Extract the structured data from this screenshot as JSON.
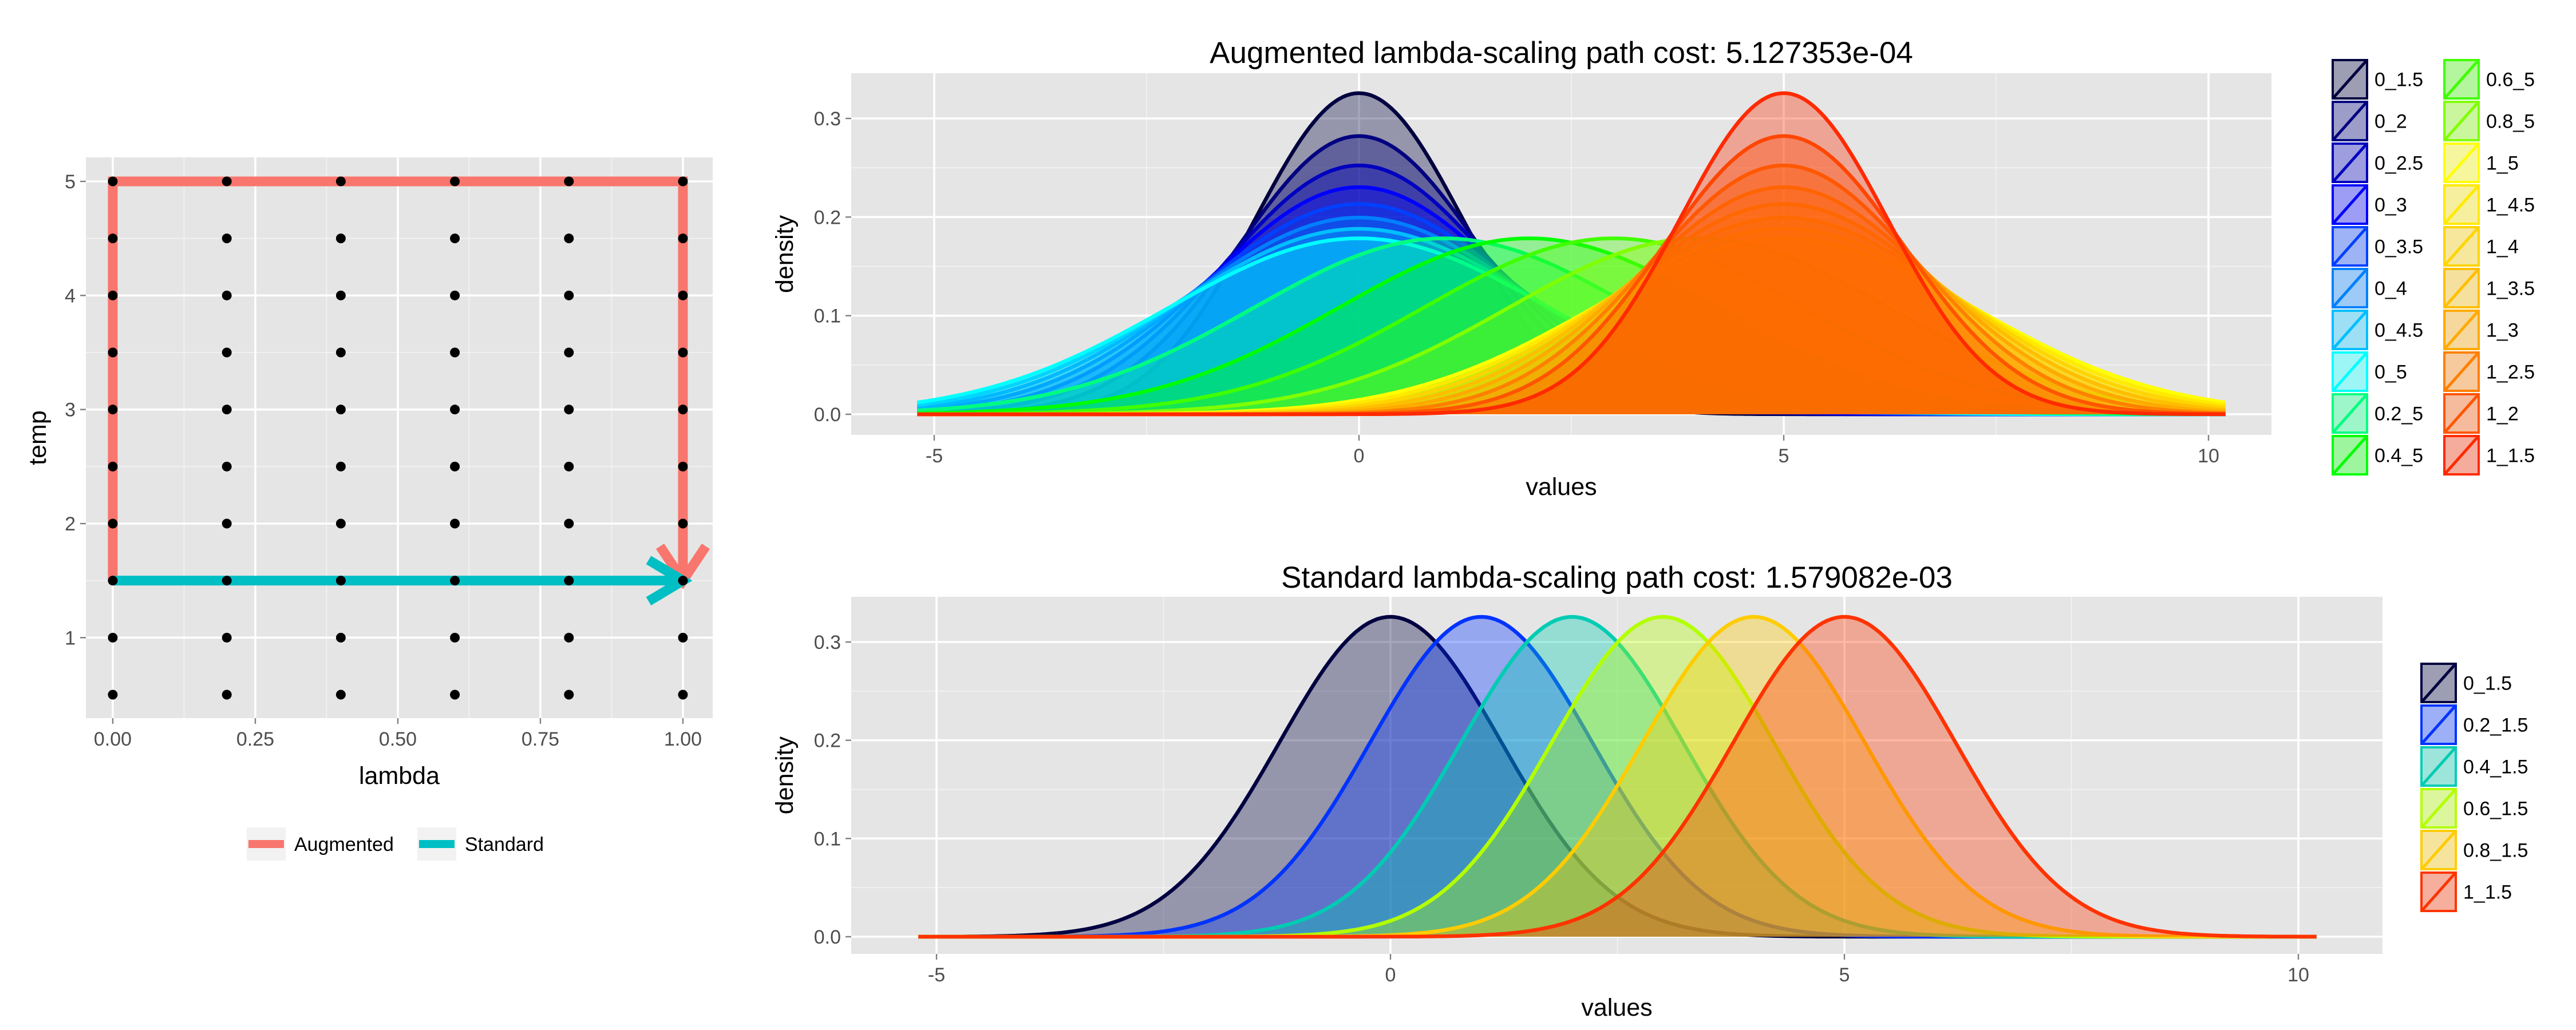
{
  "chart_data": [
    {
      "id": "path",
      "type": "line",
      "xlabel": "lambda",
      "ylabel": "temp",
      "xlim": [
        0,
        1
      ],
      "ylim": [
        0.5,
        5
      ],
      "x_ticks": [
        "0.00",
        "0.25",
        "0.50",
        "0.75",
        "1.00"
      ],
      "y_ticks": [
        "1",
        "2",
        "3",
        "4",
        "5"
      ],
      "grid": true,
      "legend_position": "bottom",
      "grid_points": {
        "lambda": [
          0,
          0.2,
          0.4,
          0.6,
          0.8,
          1.0
        ],
        "temp": [
          0.5,
          1,
          1.5,
          2,
          2.5,
          3,
          3.5,
          4,
          4.5,
          5
        ]
      },
      "series": [
        {
          "name": "Augmented",
          "color": "#F8766D",
          "x": [
            0,
            0,
            1,
            1
          ],
          "y": [
            1.5,
            5,
            5,
            1.5
          ]
        },
        {
          "name": "Standard",
          "color": "#00BFC4",
          "x": [
            0,
            1
          ],
          "y": [
            1.5,
            1.5
          ]
        }
      ]
    },
    {
      "id": "augmented",
      "type": "area",
      "title": "Augmented lambda-scaling path cost:  5.127353e-04",
      "xlabel": "values",
      "ylabel": "density",
      "xlim": [
        -5.2,
        10.2
      ],
      "ylim": [
        0,
        0.33
      ],
      "x_ticks": [
        "-5",
        "0",
        "5",
        "10"
      ],
      "y_ticks": [
        "0.0",
        "0.1",
        "0.2",
        "0.3"
      ],
      "grid": true,
      "legend_position": "right",
      "series": [
        {
          "name": "0_1.5",
          "mean": 0,
          "sd": 1.225,
          "color": "#000040"
        },
        {
          "name": "0_2",
          "mean": 0,
          "sd": 1.414,
          "color": "#000080"
        },
        {
          "name": "0_2.5",
          "mean": 0,
          "sd": 1.581,
          "color": "#0000BF"
        },
        {
          "name": "0_3",
          "mean": 0,
          "sd": 1.732,
          "color": "#0000FF"
        },
        {
          "name": "0_3.5",
          "mean": 0,
          "sd": 1.871,
          "color": "#0040FF"
        },
        {
          "name": "0_4",
          "mean": 0,
          "sd": 2.0,
          "color": "#0080FF"
        },
        {
          "name": "0_4.5",
          "mean": 0,
          "sd": 2.121,
          "color": "#00BFFF"
        },
        {
          "name": "0_5",
          "mean": 0,
          "sd": 2.236,
          "color": "#00FFFF"
        },
        {
          "name": "0.2_5",
          "mean": 1,
          "sd": 2.236,
          "color": "#00FF80"
        },
        {
          "name": "0.4_5",
          "mean": 2,
          "sd": 2.236,
          "color": "#00FF00"
        },
        {
          "name": "0.6_5",
          "mean": 3,
          "sd": 2.236,
          "color": "#40FF00"
        },
        {
          "name": "0.8_5",
          "mean": 4,
          "sd": 2.236,
          "color": "#80FF00"
        },
        {
          "name": "1_5",
          "mean": 5,
          "sd": 2.236,
          "color": "#FFFF00"
        },
        {
          "name": "1_4.5",
          "mean": 5,
          "sd": 2.121,
          "color": "#FFEA00"
        },
        {
          "name": "1_4",
          "mean": 5,
          "sd": 2.0,
          "color": "#FFD500"
        },
        {
          "name": "1_3.5",
          "mean": 5,
          "sd": 1.871,
          "color": "#FFBF00"
        },
        {
          "name": "1_3",
          "mean": 5,
          "sd": 1.732,
          "color": "#FFAA00"
        },
        {
          "name": "1_2.5",
          "mean": 5,
          "sd": 1.581,
          "color": "#FF8000"
        },
        {
          "name": "1_2",
          "mean": 5,
          "sd": 1.414,
          "color": "#FF5500"
        },
        {
          "name": "1_1.5",
          "mean": 5,
          "sd": 1.225,
          "color": "#FF2A00"
        }
      ]
    },
    {
      "id": "standard",
      "type": "area",
      "title": "Standard lambda-scaling path cost:  1.579082e-03",
      "xlabel": "values",
      "ylabel": "density",
      "xlim": [
        -5.2,
        10.2
      ],
      "ylim": [
        0,
        0.33
      ],
      "x_ticks": [
        "-5",
        "0",
        "5",
        "10"
      ],
      "y_ticks": [
        "0.0",
        "0.1",
        "0.2",
        "0.3"
      ],
      "grid": true,
      "legend_position": "right",
      "series": [
        {
          "name": "0_1.5",
          "mean": 0,
          "sd": 1.225,
          "color": "#000040"
        },
        {
          "name": "0.2_1.5",
          "mean": 1,
          "sd": 1.225,
          "color": "#0033FF"
        },
        {
          "name": "0.4_1.5",
          "mean": 2,
          "sd": 1.225,
          "color": "#00CCB3"
        },
        {
          "name": "0.6_1.5",
          "mean": 3,
          "sd": 1.225,
          "color": "#B3FF00"
        },
        {
          "name": "0.8_1.5",
          "mean": 4,
          "sd": 1.225,
          "color": "#FFCC00"
        },
        {
          "name": "1_1.5",
          "mean": 5,
          "sd": 1.225,
          "color": "#FF3300"
        }
      ]
    }
  ]
}
